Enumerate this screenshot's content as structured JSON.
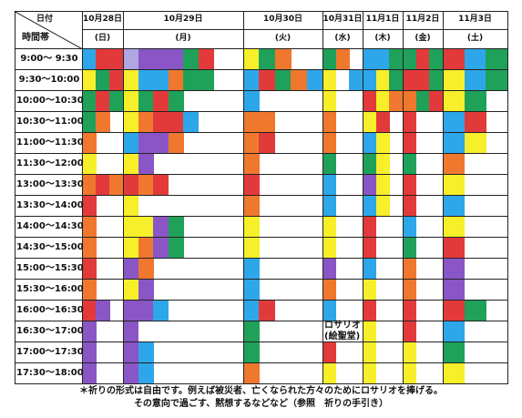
{
  "header": {
    "corner_top": "日付",
    "corner_bottom": "時間帯",
    "days": [
      {
        "date": "10月28日",
        "weekday": "(日)"
      },
      {
        "date": "10月29日",
        "weekday": "(月)"
      },
      {
        "date": "10月30日",
        "weekday": "(火)"
      },
      {
        "date": "10月31日",
        "weekday": "(水)"
      },
      {
        "date": "11月1日",
        "weekday": "(木)"
      },
      {
        "date": "11月2日",
        "weekday": "(金)"
      },
      {
        "date": "11月3日",
        "weekday": "(土)"
      }
    ]
  },
  "time_slots": [
    "9:00～ 9:30",
    "9:30～10:00",
    "10:00～10:30",
    "10:30～11:00",
    "11:00～11:30",
    "11:30～12:00",
    "13:00～13:30",
    "13:30～14:00",
    "14:00～14:30",
    "14:30～15:00",
    "15:00～15:30",
    "15:30～16:00",
    "16:00～16:30",
    "16:30～17:00",
    "17:00～17:30",
    "17:30～18:00"
  ],
  "colors": {
    "R": "#e23a3a",
    "B": "#2ea6ea",
    "G": "#1fa15a",
    "Y": "#f7ef2a",
    "O": "#f0782e",
    "P": "#8a56c6",
    "L": "#b0a6e0",
    "W": "#ffffff"
  },
  "grid": {
    "d1": [
      "BRR",
      "YGR",
      "GRG",
      "GOW",
      "OWW",
      "YWW",
      "ORO",
      "RWW",
      "OWW",
      "OWW",
      "RWW",
      "OWW",
      "RPW",
      "PWW",
      "PWW",
      "PWW"
    ],
    "d2": [
      "LPPPGRWW",
      "YBBOGGWW",
      "YGRGWWWW",
      "YORRBWWW",
      "BPPOWWWW",
      "YPWWWWWW",
      "RORWWWWW",
      "YWWWWWWW",
      "YYPGWWWW",
      "YOPGWWWW",
      "POWWWWWW",
      "YPWWWWWW",
      "PPBWWWWW",
      "PWWWWWWW",
      "PBWWWWWW",
      "PBWWWWWW"
    ],
    "d3": [
      "YGOWW",
      "BRGOB",
      "BWWWW",
      "OOWWW",
      "ORWWW",
      "OWWWW",
      "RWWWW",
      "OWWWW",
      "YWWWW",
      "YWWWW",
      "BWWWW",
      "BWWWW",
      "BRWWW",
      "GWWWW",
      "GWWWW",
      "OWWWW"
    ],
    "d4": [
      "GOW",
      "YWB",
      "YWW",
      "OWW",
      "OWW",
      "GWW",
      "BWW",
      "BWW",
      "YWW",
      "YWW",
      "PWW",
      "OWW",
      "BWW",
      "WWW",
      "RWW",
      "YWW"
    ],
    "d5": [
      "BBG",
      "BYG",
      "RYO",
      "YRW",
      "BYW",
      "GYW",
      "PYW",
      "BYW",
      "RWW",
      "RWW",
      "BWW",
      "YWW",
      "RWW",
      "YWW",
      "YWW",
      "YWW"
    ],
    "d6": [
      "GRG",
      "RRG",
      "OGR",
      "RWW",
      "RWW",
      "GWW",
      "RWW",
      "RWW",
      "BWW",
      "GWW",
      "OWW",
      "OWW",
      "RWW",
      "RWW",
      "YWW",
      "YWW"
    ],
    "d7": [
      "RBG",
      "YBG",
      "YGW",
      "BRW",
      "BYW",
      "OWW",
      "YWW",
      "BWW",
      "YWW",
      "RWW",
      "PWW",
      "PWW",
      "RGW",
      "BWW",
      "GWW",
      "YWW"
    ]
  },
  "note": {
    "line1": "ロサリオ",
    "line2": "(絵聖堂)"
  },
  "footer": {
    "line1": "＊祈りの形式は自由です。例えば被災者、亡くなられた方々のためにロサリオを捧げる。",
    "line2": "その意向で過ごす、黙想するなどなど（参照　祈りの手引き）"
  }
}
